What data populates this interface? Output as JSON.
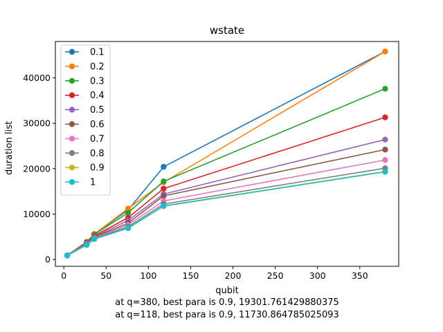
{
  "chart_data": {
    "type": "line",
    "title": "wstate",
    "xlabel": "qubit",
    "ylabel": "duration list",
    "xlim": [
      -10,
      396
    ],
    "ylim": [
      -1500,
      48000
    ],
    "xticks": [
      0,
      50,
      100,
      150,
      200,
      250,
      300,
      350
    ],
    "yticks": [
      0,
      10000,
      20000,
      30000,
      40000
    ],
    "ytick_labels": [
      "0",
      "10000",
      "20000",
      "30000",
      "40000"
    ],
    "grid": false,
    "legend": "upper-left",
    "x": [
      4,
      27,
      36,
      76,
      118,
      380
    ],
    "series": [
      {
        "name": "0.1",
        "color": "#1f77b4",
        "values": [
          900,
          3900,
          5600,
          10900,
          20400,
          45800
        ]
      },
      {
        "name": "0.2",
        "color": "#ff7f0e",
        "values": [
          900,
          3900,
          5600,
          11200,
          17000,
          45800
        ]
      },
      {
        "name": "0.3",
        "color": "#2ca02c",
        "values": [
          900,
          3800,
          5500,
          10300,
          17200,
          37600
        ]
      },
      {
        "name": "0.4",
        "color": "#d62728",
        "values": [
          900,
          3700,
          5200,
          9200,
          15600,
          31300
        ]
      },
      {
        "name": "0.5",
        "color": "#9467bd",
        "values": [
          900,
          3600,
          5000,
          8600,
          14400,
          26400
        ]
      },
      {
        "name": "0.6",
        "color": "#8c564b",
        "values": [
          900,
          3500,
          4900,
          8000,
          14000,
          24200
        ]
      },
      {
        "name": "0.7",
        "color": "#e377c2",
        "values": [
          900,
          3400,
          4700,
          7600,
          12900,
          21900
        ]
      },
      {
        "name": "0.8",
        "color": "#7f7f7f",
        "values": [
          900,
          3300,
          4600,
          7200,
          12200,
          20100
        ]
      },
      {
        "name": "0.9",
        "color": "#bcbd22",
        "values": [
          900,
          3200,
          4500,
          6900,
          11730.864785025093,
          19301.761429880375
        ]
      },
      {
        "name": "1",
        "color": "#17becf",
        "values": [
          900,
          3200,
          4500,
          6900,
          11800,
          19350
        ]
      }
    ],
    "annotations": [
      "at q=380, best para is 0.9, 19301.761429880375",
      "at q=118, best para is 0.9, 11730.864785025093"
    ]
  }
}
